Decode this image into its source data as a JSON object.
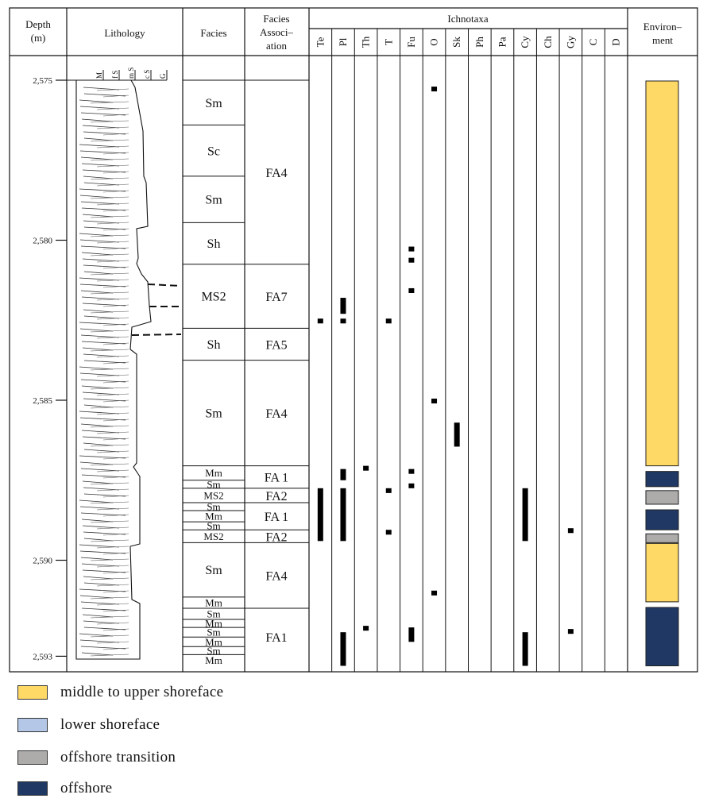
{
  "headers": {
    "depth": [
      "Depth",
      "(m)"
    ],
    "lithology": "Lithology",
    "facies": "Facies",
    "facies_association": [
      "Facies",
      "Associ–",
      "ation"
    ],
    "ichnotaxa": "Ichnotaxa",
    "environment": [
      "Environ–",
      "ment"
    ]
  },
  "grain_size_labels": [
    "M",
    "f S",
    "m S",
    "c S",
    "G"
  ],
  "depth_axis": {
    "min": 2575,
    "max": 2593,
    "ticks": [
      2575,
      2580,
      2585,
      2590,
      2593
    ],
    "tick_labels": [
      "2,575",
      "2,580",
      "2,585",
      "2,590",
      "2,593"
    ]
  },
  "ichnotaxa": [
    "Te",
    "Pl",
    "Th",
    "T",
    "Fu",
    "O",
    "Sk",
    "Ph",
    "Pa",
    "Cy",
    "Ch",
    "Gy",
    "C",
    "D"
  ],
  "facies": [
    {
      "label": "Sm",
      "top": 2575.0,
      "bottom": 2576.4
    },
    {
      "label": "Sc",
      "top": 2576.4,
      "bottom": 2578.0
    },
    {
      "label": "Sm",
      "top": 2578.0,
      "bottom": 2579.45
    },
    {
      "label": "Sh",
      "top": 2579.45,
      "bottom": 2580.75
    },
    {
      "label": "MS2",
      "top": 2580.75,
      "bottom": 2582.75
    },
    {
      "label": "Sh",
      "top": 2582.75,
      "bottom": 2583.75
    },
    {
      "label": "Sm",
      "top": 2583.75,
      "bottom": 2587.05
    },
    {
      "label": "Mm",
      "top": 2587.05,
      "bottom": 2587.5
    },
    {
      "label": "Sm",
      "top": 2587.5,
      "bottom": 2587.75
    },
    {
      "label": "MS2",
      "top": 2587.75,
      "bottom": 2588.2
    },
    {
      "label": "Sm",
      "top": 2588.2,
      "bottom": 2588.45
    },
    {
      "label": "Mm",
      "top": 2588.45,
      "bottom": 2588.8
    },
    {
      "label": "Sm",
      "top": 2588.8,
      "bottom": 2589.05
    },
    {
      "label": "MS2",
      "top": 2589.05,
      "bottom": 2589.45
    },
    {
      "label": "Sm",
      "top": 2589.45,
      "bottom": 2591.15
    },
    {
      "label": "Mm",
      "top": 2591.15,
      "bottom": 2591.5
    },
    {
      "label": "Sm",
      "top": 2591.5,
      "bottom": 2591.85
    },
    {
      "label": "Mm",
      "top": 2591.85,
      "bottom": 2592.1
    },
    {
      "label": "Sm",
      "top": 2592.1,
      "bottom": 2592.4
    },
    {
      "label": "Mm",
      "top": 2592.4,
      "bottom": 2592.7
    },
    {
      "label": "Sm",
      "top": 2592.7,
      "bottom": 2592.95
    },
    {
      "label": "Mm",
      "top": 2592.95,
      "bottom": 2593.3
    }
  ],
  "facies_associations": [
    {
      "label": "FA4",
      "top": 2575.0,
      "bottom": 2580.75
    },
    {
      "label": "FA7",
      "top": 2580.75,
      "bottom": 2582.75
    },
    {
      "label": "FA5",
      "top": 2582.75,
      "bottom": 2583.75
    },
    {
      "label": "FA4",
      "top": 2583.75,
      "bottom": 2587.05
    },
    {
      "label": "FA 1",
      "top": 2587.05,
      "bottom": 2587.75
    },
    {
      "label": "FA2",
      "top": 2587.75,
      "bottom": 2588.2
    },
    {
      "label": "FA 1",
      "top": 2588.2,
      "bottom": 2589.05
    },
    {
      "label": "FA2",
      "top": 2589.05,
      "bottom": 2589.45
    },
    {
      "label": "FA4",
      "top": 2589.45,
      "bottom": 2591.5
    },
    {
      "label": "FA1",
      "top": 2591.5,
      "bottom": 2593.3
    }
  ],
  "trace_occurrences": [
    {
      "taxon": "O",
      "top": 2575.2,
      "bottom": 2575.35
    },
    {
      "taxon": "Fu",
      "top": 2580.2,
      "bottom": 2580.35
    },
    {
      "taxon": "Fu",
      "top": 2580.55,
      "bottom": 2580.7
    },
    {
      "taxon": "Fu",
      "top": 2581.5,
      "bottom": 2581.65
    },
    {
      "taxon": "Pl",
      "top": 2581.8,
      "bottom": 2582.3
    },
    {
      "taxon": "Te",
      "top": 2582.45,
      "bottom": 2582.6
    },
    {
      "taxon": "Pl",
      "top": 2582.45,
      "bottom": 2582.6
    },
    {
      "taxon": "T",
      "top": 2582.45,
      "bottom": 2582.6
    },
    {
      "taxon": "O",
      "top": 2584.95,
      "bottom": 2585.1
    },
    {
      "taxon": "Sk",
      "top": 2585.7,
      "bottom": 2586.45
    },
    {
      "taxon": "Th",
      "top": 2587.05,
      "bottom": 2587.2
    },
    {
      "taxon": "Fu",
      "top": 2587.15,
      "bottom": 2587.3
    },
    {
      "taxon": "Pl",
      "top": 2587.15,
      "bottom": 2587.5
    },
    {
      "taxon": "Fu",
      "top": 2587.6,
      "bottom": 2587.75
    },
    {
      "taxon": "T",
      "top": 2587.75,
      "bottom": 2587.9
    },
    {
      "taxon": "Te",
      "top": 2587.75,
      "bottom": 2589.4
    },
    {
      "taxon": "Pl",
      "top": 2587.75,
      "bottom": 2589.4
    },
    {
      "taxon": "Cy",
      "top": 2587.75,
      "bottom": 2589.4
    },
    {
      "taxon": "T",
      "top": 2589.05,
      "bottom": 2589.2
    },
    {
      "taxon": "Gy",
      "top": 2589.0,
      "bottom": 2589.15
    },
    {
      "taxon": "O",
      "top": 2590.95,
      "bottom": 2591.1
    },
    {
      "taxon": "Th",
      "top": 2592.05,
      "bottom": 2592.2
    },
    {
      "taxon": "Gy",
      "top": 2592.15,
      "bottom": 2592.3
    },
    {
      "taxon": "Fu",
      "top": 2592.1,
      "bottom": 2592.55
    },
    {
      "taxon": "Pl",
      "top": 2592.25,
      "bottom": 2593.3
    },
    {
      "taxon": "Cy",
      "top": 2592.25,
      "bottom": 2593.3
    }
  ],
  "environment_intervals": [
    {
      "env": "middle to upper shoreface",
      "top": 2575.0,
      "bottom": 2587.05
    },
    {
      "env": "offshore",
      "top": 2587.2,
      "bottom": 2587.7
    },
    {
      "env": "offshore transition",
      "top": 2587.8,
      "bottom": 2588.25
    },
    {
      "env": "offshore",
      "top": 2588.4,
      "bottom": 2589.05
    },
    {
      "env": "offshore transition",
      "top": 2589.15,
      "bottom": 2589.45
    },
    {
      "env": "middle to upper shoreface",
      "top": 2589.45,
      "bottom": 2591.3
    },
    {
      "env": "offshore",
      "top": 2591.45,
      "bottom": 2593.3
    }
  ],
  "legend": [
    {
      "label": "middle to upper shoreface",
      "color": "#FFD966"
    },
    {
      "label": "lower shoreface",
      "color": "#B4C7E7"
    },
    {
      "label": "offshore transition",
      "color": "#AEABAB"
    },
    {
      "label": "offshore",
      "color": "#1F3864"
    }
  ],
  "colors": {
    "line": "#111111",
    "trace": "#000000"
  }
}
